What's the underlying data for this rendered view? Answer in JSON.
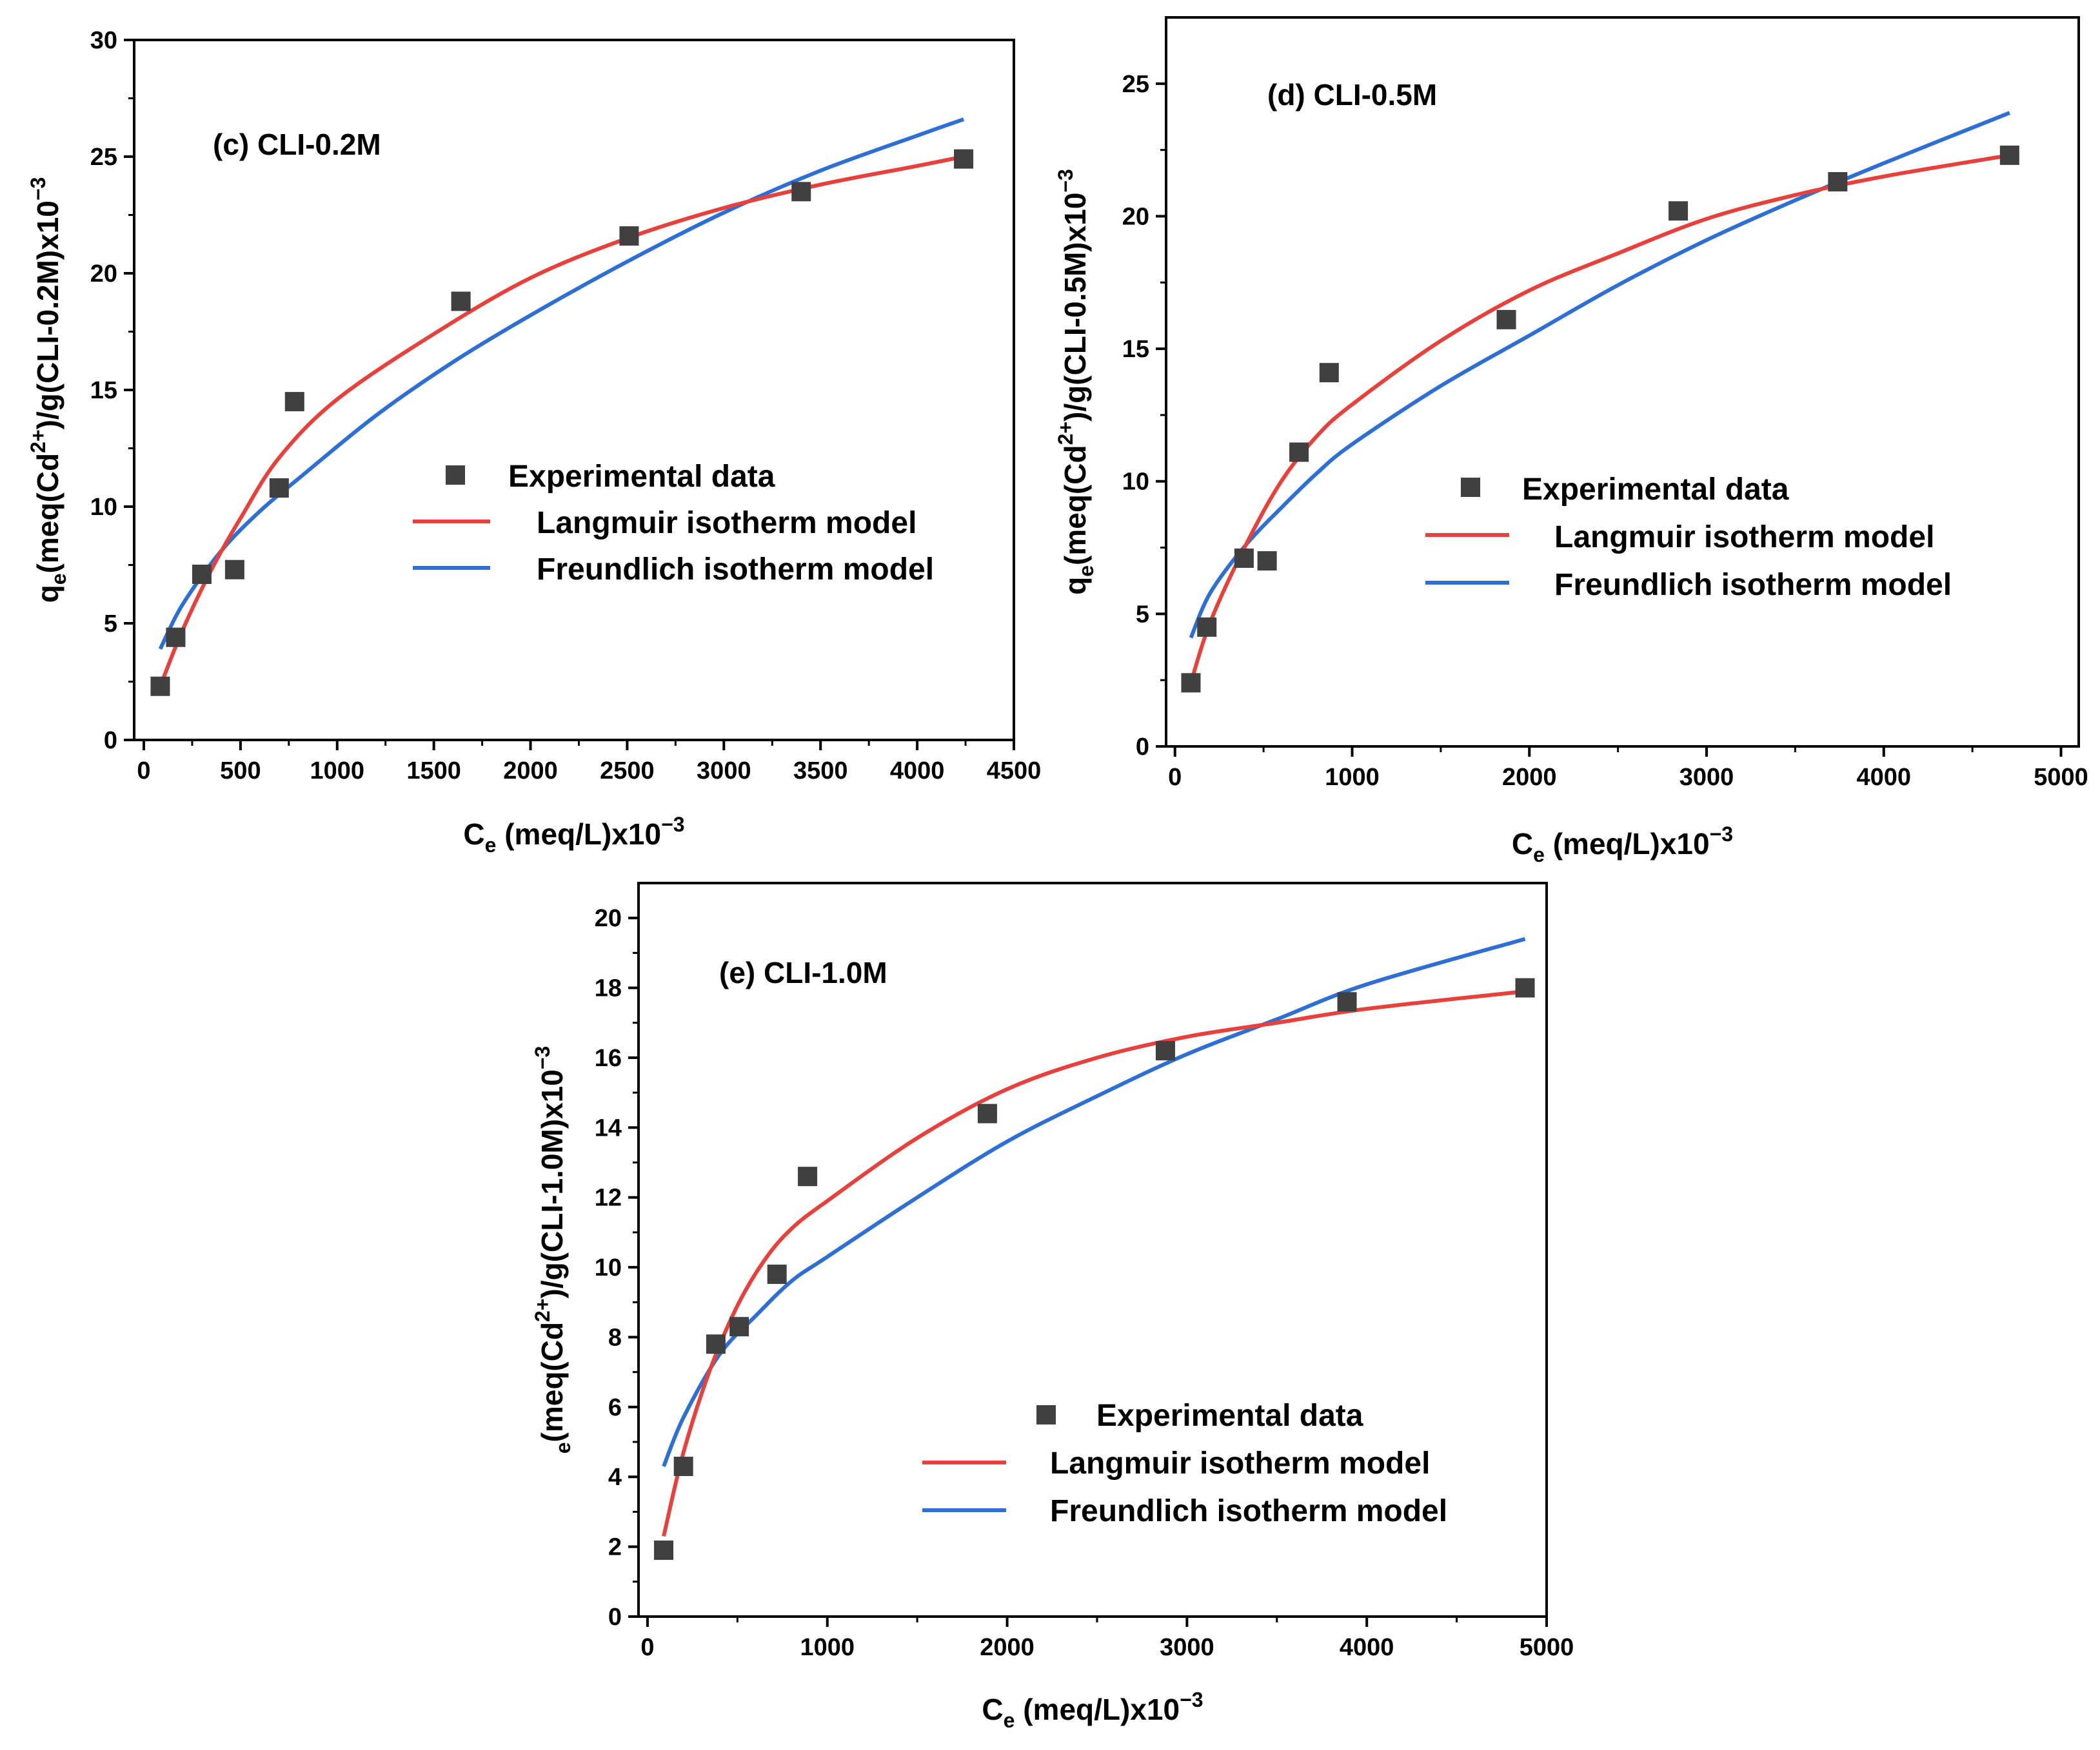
{
  "chart_data": [
    {
      "type": "scatter",
      "title": "(c) CLI-0.2M",
      "xlabel": {
        "main": "C",
        "sub": "e",
        "tail": " (meq/L)x10",
        "sup": "−3"
      },
      "ylabel": {
        "pre": "q",
        "sub": "e",
        "mid": "(meq(Cd",
        "sup": "2+",
        "tail": ")/g(CLI-0.2M)x10",
        "sup2": "−3"
      },
      "xlim": [
        -50,
        4500
      ],
      "ylim": [
        0,
        30
      ],
      "xticks": [
        0,
        500,
        1000,
        1500,
        2000,
        2500,
        3000,
        3500,
        4000,
        4500
      ],
      "yticks": [
        0,
        5,
        10,
        15,
        20,
        25,
        30
      ],
      "legend": {
        "position": "center-right",
        "entries": [
          "Experimental data",
          "Langmuir isotherm model",
          "Freundlich isotherm model"
        ]
      },
      "series": [
        {
          "name": "Experimental data",
          "x": [
            85,
            165,
            300,
            470,
            700,
            780,
            1640,
            2510,
            3400,
            4240
          ],
          "y": [
            2.3,
            4.4,
            7.1,
            7.3,
            10.8,
            14.5,
            18.8,
            21.6,
            23.5,
            24.9
          ]
        },
        {
          "name": "Langmuir isotherm model",
          "x": [
            85,
            200,
            350,
            500,
            700,
            1000,
            1500,
            2000,
            2500,
            3000,
            3500,
            4000,
            4240
          ],
          "y": [
            2.3,
            4.7,
            7.3,
            9.5,
            12.1,
            14.6,
            17.4,
            19.8,
            21.5,
            22.8,
            23.8,
            24.6,
            25.0
          ]
        },
        {
          "name": "Freundlich isotherm model",
          "x": [
            85,
            200,
            400,
            600,
            800,
            1200,
            1600,
            2000,
            2500,
            3000,
            3500,
            4000,
            4240
          ],
          "y": [
            3.9,
            5.8,
            8.1,
            9.8,
            11.2,
            13.9,
            16.2,
            18.2,
            20.5,
            22.6,
            24.4,
            25.9,
            26.6
          ]
        }
      ],
      "colors": {
        "scatter": "#404040",
        "langmuir": "#e8403a",
        "freundlich": "#2e6fd6"
      }
    },
    {
      "type": "scatter",
      "title": "(d) CLI-0.5M",
      "xlabel": {
        "main": "C",
        "sub": "e",
        "tail": " (meq/L)x10",
        "sup": "−3"
      },
      "ylabel": {
        "pre": "q",
        "sub": "e",
        "mid": "(meq(Cd",
        "sup": "2+",
        "tail": ")/g(CLI-0.5M)x10",
        "sup2": "−3"
      },
      "xlim": [
        -50,
        5100
      ],
      "ylim": [
        0,
        27.5
      ],
      "xticks": [
        0,
        1000,
        2000,
        3000,
        4000,
        5000
      ],
      "yticks": [
        0,
        5,
        10,
        15,
        20,
        25
      ],
      "legend": {
        "position": "center-right",
        "entries": [
          "Experimental data",
          "Langmuir isotherm model",
          "Freundlich isotherm model"
        ]
      },
      "series": [
        {
          "name": "Experimental data",
          "x": [
            90,
            180,
            390,
            520,
            700,
            870,
            1870,
            2840,
            3740,
            4710
          ],
          "y": [
            2.4,
            4.5,
            7.1,
            7.0,
            11.1,
            14.1,
            16.1,
            20.2,
            21.3,
            22.3
          ]
        },
        {
          "name": "Langmuir isotherm model",
          "x": [
            90,
            200,
            400,
            600,
            800,
            1000,
            1500,
            2000,
            2500,
            3000,
            3500,
            4000,
            4710
          ],
          "y": [
            2.4,
            4.7,
            7.6,
            10.0,
            11.7,
            12.9,
            15.3,
            17.2,
            18.6,
            19.9,
            20.8,
            21.5,
            22.3
          ]
        },
        {
          "name": "Freundlich isotherm model",
          "x": [
            90,
            200,
            400,
            600,
            800,
            1000,
            1500,
            2000,
            2500,
            3000,
            3500,
            4000,
            4710
          ],
          "y": [
            4.1,
            5.8,
            7.6,
            9.0,
            10.3,
            11.4,
            13.6,
            15.5,
            17.4,
            19.1,
            20.6,
            22.0,
            23.9
          ]
        }
      ],
      "colors": {
        "scatter": "#404040",
        "langmuir": "#e8403a",
        "freundlich": "#2e6fd6"
      }
    },
    {
      "type": "scatter",
      "title": "(e)  CLI-1.0M",
      "xlabel": {
        "main": "C",
        "sub": "e",
        "tail": " (meq/L)x10",
        "sup": "−3"
      },
      "ylabel": {
        "pre": "",
        "sub": "e",
        "mid": "(meq(Cd",
        "sup": "2+",
        "tail": ")/g(CLI-1.0M)x10",
        "sup2": "−3"
      },
      "xlim": [
        -50,
        5000
      ],
      "ylim": [
        0,
        21
      ],
      "xticks": [
        0,
        1000,
        2000,
        3000,
        4000,
        5000
      ],
      "yticks": [
        0,
        2,
        4,
        6,
        8,
        10,
        12,
        14,
        16,
        18,
        20
      ],
      "legend": {
        "position": "bottom-right",
        "entries": [
          "Experimental data",
          "Langmuir isotherm model",
          "Freundlich isotherm model"
        ]
      },
      "series": [
        {
          "name": "Experimental data",
          "x": [
            90,
            200,
            380,
            510,
            720,
            890,
            1890,
            2880,
            3890,
            4880
          ],
          "y": [
            1.9,
            4.3,
            7.8,
            8.3,
            9.8,
            12.6,
            14.4,
            16.2,
            17.6,
            18.0
          ]
        },
        {
          "name": "Langmuir isotherm model",
          "x": [
            90,
            200,
            350,
            500,
            650,
            800,
            1000,
            1500,
            2000,
            2500,
            3000,
            3500,
            4000,
            4880
          ],
          "y": [
            2.3,
            4.7,
            7.1,
            8.9,
            10.2,
            11.1,
            11.9,
            13.7,
            15.1,
            16.0,
            16.6,
            17.0,
            17.4,
            17.9
          ]
        },
        {
          "name": "Freundlich isotherm model",
          "x": [
            90,
            200,
            400,
            600,
            800,
            1000,
            1500,
            2000,
            2500,
            3000,
            3500,
            4000,
            4880
          ],
          "y": [
            4.3,
            5.7,
            7.5,
            8.6,
            9.6,
            10.3,
            12.0,
            13.6,
            14.9,
            16.1,
            17.1,
            18.1,
            19.4
          ]
        }
      ],
      "colors": {
        "scatter": "#404040",
        "langmuir": "#e8403a",
        "freundlich": "#2e6fd6"
      }
    }
  ]
}
